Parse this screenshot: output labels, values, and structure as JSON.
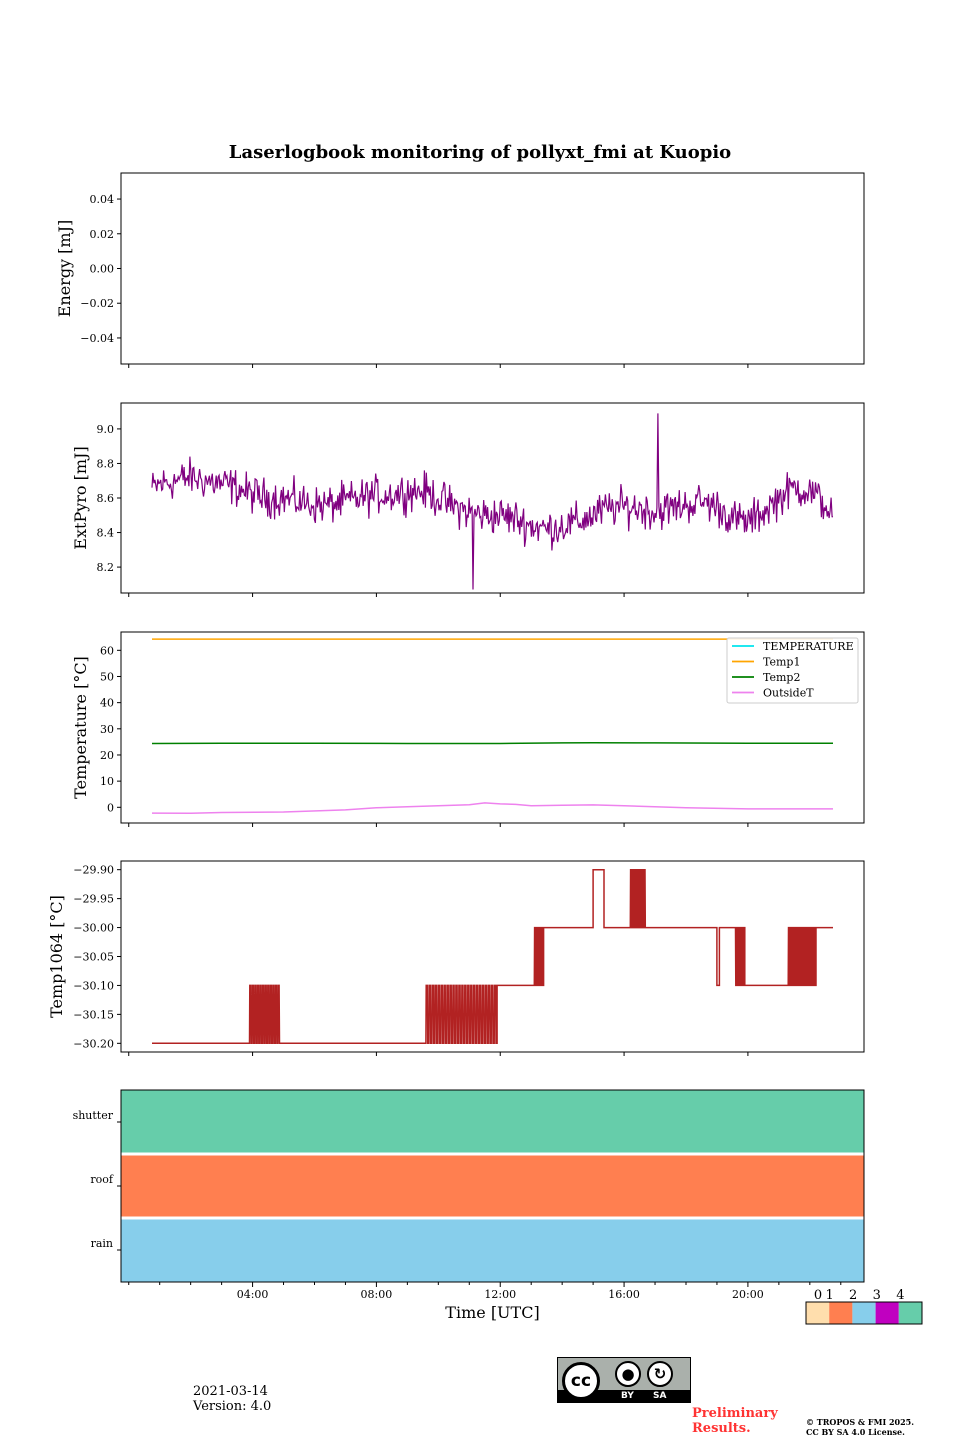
{
  "title": "Laserlogbook monitoring of pollyxt_fmi at Kuopio",
  "footer": {
    "date": "2021-03-14",
    "version": "Version: 4.0",
    "preliminary": "Preliminary Results.",
    "copyright": "© TROPOS & FMI 2025. CC BY SA 4.0 License.",
    "license_labels": [
      "BY",
      "SA"
    ]
  },
  "chart_data": [
    {
      "type": "line",
      "name": "energy",
      "ylabel": "Energy [mJ]",
      "ylim": [
        -0.055,
        0.055
      ],
      "yticks": [
        0.04,
        0.02,
        0.0,
        -0.02,
        -0.04
      ],
      "yticklabels": [
        "0.04",
        "0.02",
        "0.00",
        "−0.02",
        "−0.04"
      ],
      "series": []
    },
    {
      "type": "line",
      "name": "extpyro",
      "ylabel": "ExtPyro [mJ]",
      "ylim": [
        8.05,
        9.15
      ],
      "yticks": [
        9.0,
        8.8,
        8.6,
        8.4,
        8.2
      ],
      "yticklabels": [
        "9.0",
        "8.8",
        "8.6",
        "8.4",
        "8.2"
      ],
      "series": [
        {
          "name": "ExtPyro",
          "color": "#800080",
          "x": [
            0.75,
            1.0,
            1.5,
            2.0,
            2.5,
            3.0,
            3.5,
            4.0,
            4.5,
            5.0,
            5.5,
            6.0,
            6.5,
            7.0,
            7.5,
            8.0,
            8.5,
            9.0,
            9.5,
            10.0,
            10.5,
            11.0,
            11.5,
            12.0,
            12.5,
            13.0,
            13.5,
            14.0,
            14.5,
            15.0,
            15.5,
            16.0,
            16.5,
            17.0,
            17.5,
            18.0,
            18.5,
            19.0,
            19.5,
            20.0,
            20.5,
            21.0,
            21.5,
            22.0,
            22.5,
            22.75
          ],
          "y": [
            8.65,
            8.68,
            8.7,
            8.72,
            8.7,
            8.68,
            8.66,
            8.62,
            8.6,
            8.6,
            8.58,
            8.56,
            8.56,
            8.58,
            8.6,
            8.62,
            8.62,
            8.64,
            8.64,
            8.6,
            8.55,
            8.52,
            8.5,
            8.5,
            8.48,
            8.44,
            8.42,
            8.44,
            8.46,
            8.5,
            8.54,
            8.55,
            8.54,
            8.52,
            8.54,
            8.56,
            8.58,
            8.55,
            8.48,
            8.46,
            8.52,
            8.6,
            8.66,
            8.64,
            8.56,
            8.5
          ],
          "noise": 0.12,
          "max": 9.09,
          "min": 8.07
        }
      ]
    },
    {
      "type": "line",
      "name": "temperature",
      "ylabel": "Temperature [°C]",
      "ylim": [
        -6,
        67
      ],
      "yticks": [
        60,
        50,
        40,
        30,
        20,
        10,
        0
      ],
      "yticklabels": [
        "60",
        "50",
        "40",
        "30",
        "20",
        "10",
        "0"
      ],
      "legend_position": "top-right",
      "series": [
        {
          "name": "TEMPERATURE",
          "color": "#00e5ee",
          "x": [],
          "y": []
        },
        {
          "name": "Temp1",
          "color": "#ffa500",
          "x": [
            0.75,
            22.75
          ],
          "y": [
            64.3,
            64.3
          ]
        },
        {
          "name": "Temp2",
          "color": "#008000",
          "x": [
            0.75,
            3,
            6,
            9,
            12,
            14,
            15,
            17,
            20,
            22.75
          ],
          "y": [
            24.4,
            24.5,
            24.5,
            24.4,
            24.4,
            24.6,
            24.7,
            24.6,
            24.5,
            24.5
          ]
        },
        {
          "name": "OutsideT",
          "color": "#ee82ee",
          "x": [
            0.75,
            2,
            3,
            5,
            7,
            8,
            9,
            10,
            11,
            11.5,
            12,
            12.5,
            13,
            14,
            15,
            16,
            18,
            20,
            22,
            22.75
          ],
          "y": [
            -2.2,
            -2.3,
            -2.0,
            -1.8,
            -1.0,
            -0.2,
            0.2,
            0.6,
            1.0,
            1.7,
            1.3,
            1.1,
            0.6,
            0.8,
            0.9,
            0.6,
            -0.2,
            -0.6,
            -0.6,
            -0.6
          ]
        }
      ]
    },
    {
      "type": "line",
      "name": "temp1064",
      "ylabel": "Temp1064 [°C]",
      "ylim": [
        -30.215,
        -29.885
      ],
      "yticks": [
        -29.9,
        -29.95,
        -30.0,
        -30.05,
        -30.1,
        -30.15,
        -30.2
      ],
      "yticklabels": [
        "−29.90",
        "−29.95",
        "−30.00",
        "−30.05",
        "−30.10",
        "−30.15",
        "−30.20"
      ],
      "series": [
        {
          "name": "Temp1064",
          "color": "#b22222",
          "segments": [
            {
              "from": 0.75,
              "to": 3.9,
              "level": -30.2
            },
            {
              "from": 3.9,
              "to": 4.9,
              "level": -30.2,
              "alt": -30.1,
              "flips": 12
            },
            {
              "from": 4.9,
              "to": 9.6,
              "level": -30.2
            },
            {
              "from": 9.6,
              "to": 11.9,
              "level": -30.2,
              "alt": -30.1,
              "flips": 24
            },
            {
              "from": 11.9,
              "to": 13.1,
              "level": -30.1
            },
            {
              "from": 13.1,
              "to": 13.4,
              "level": -30.1,
              "alt": -30.0,
              "flips": 6
            },
            {
              "from": 13.4,
              "to": 15.0,
              "level": -30.0
            },
            {
              "from": 15.0,
              "to": 15.35,
              "level": -29.9
            },
            {
              "from": 15.35,
              "to": 16.2,
              "level": -30.0
            },
            {
              "from": 16.2,
              "to": 16.7,
              "level": -30.0,
              "alt": -29.9,
              "flips": 10
            },
            {
              "from": 16.7,
              "to": 19.0,
              "level": -30.0
            },
            {
              "from": 19.0,
              "to": 19.08,
              "level": -30.1
            },
            {
              "from": 19.08,
              "to": 19.6,
              "level": -30.0
            },
            {
              "from": 19.6,
              "to": 19.9,
              "level": -30.0,
              "alt": -30.1,
              "flips": 6
            },
            {
              "from": 19.9,
              "to": 21.3,
              "level": -30.1
            },
            {
              "from": 21.3,
              "to": 22.2,
              "level": -30.1,
              "alt": -30.0,
              "flips": 16
            },
            {
              "from": 22.2,
              "to": 22.75,
              "level": -30.0
            }
          ]
        }
      ]
    },
    {
      "type": "heatmap",
      "name": "status",
      "xlabel": "Time [UTC]",
      "xlim": [
        -0.25,
        23.75
      ],
      "xticks": [
        4,
        8,
        12,
        16,
        20
      ],
      "xticklabels": [
        "04:00",
        "08:00",
        "12:00",
        "16:00",
        "20:00"
      ],
      "rows": [
        {
          "name": "shutter",
          "value": 4
        },
        {
          "name": "roof",
          "value": 1
        },
        {
          "name": "rain",
          "value": 2
        }
      ],
      "colorbar": {
        "labels": [
          "0",
          "1",
          "2",
          "3",
          "4"
        ],
        "colors": [
          "#ffdead",
          "#ff7f50",
          "#87ceeb",
          "#c000c0",
          "#66cdaa"
        ]
      }
    }
  ]
}
